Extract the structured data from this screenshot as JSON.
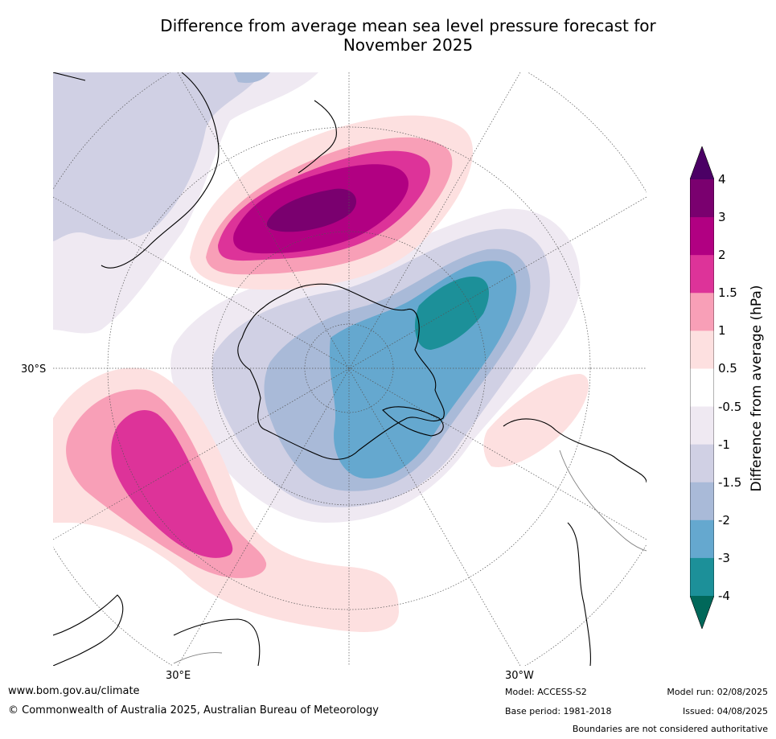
{
  "title_line1": "Difference from average mean sea level pressure forecast for",
  "title_line2": "November 2025",
  "map": {
    "projection": "south-polar-stereographic",
    "lat_label": "30°S",
    "lon_labels": {
      "east": "30°E",
      "west": "30°W"
    },
    "colors": {
      "ocean_neutral": "#ffffff",
      "coast": "#000000",
      "borders": "#808080",
      "graticule": "#555555"
    }
  },
  "colorbar": {
    "label": "Difference from average (hPa)",
    "ticks": [
      "4",
      "3",
      "2",
      "1.5",
      "1",
      "0.5",
      "-0.5",
      "-1",
      "-1.5",
      "-2",
      "-3",
      "-4"
    ],
    "bins": [
      {
        "range": ">4",
        "color": "#4b0065"
      },
      {
        "range": "3 to 4",
        "color": "#7a006f"
      },
      {
        "range": "2 to 3",
        "color": "#b10082"
      },
      {
        "range": "1.5 to 2",
        "color": "#dd3399"
      },
      {
        "range": "1 to 1.5",
        "color": "#f89fb7"
      },
      {
        "range": "0.5 to 1",
        "color": "#fde0e0"
      },
      {
        "range": "-0.5 to 0.5",
        "color": "#ffffff"
      },
      {
        "range": "-1 to -0.5",
        "color": "#efe9f2"
      },
      {
        "range": "-1.5 to -1",
        "color": "#d0d0e4"
      },
      {
        "range": "-2 to -1.5",
        "color": "#a9bad8"
      },
      {
        "range": "-3 to -2",
        "color": "#65a8cf"
      },
      {
        "range": "-4 to -3",
        "color": "#1c9099"
      },
      {
        "range": "<-4",
        "color": "#01685a"
      }
    ]
  },
  "footer": {
    "url": "www.bom.gov.au/climate",
    "copyright": "© Commonwealth of Australia 2025, Australian Bureau of Meteorology",
    "model": "Model: ACCESS-S2",
    "base_period": "Base period: 1981-2018",
    "model_run": "Model run: 02/08/2025",
    "issued": "Issued: 04/08/2025",
    "disclaimer": "Boundaries are not considered authoritative"
  }
}
